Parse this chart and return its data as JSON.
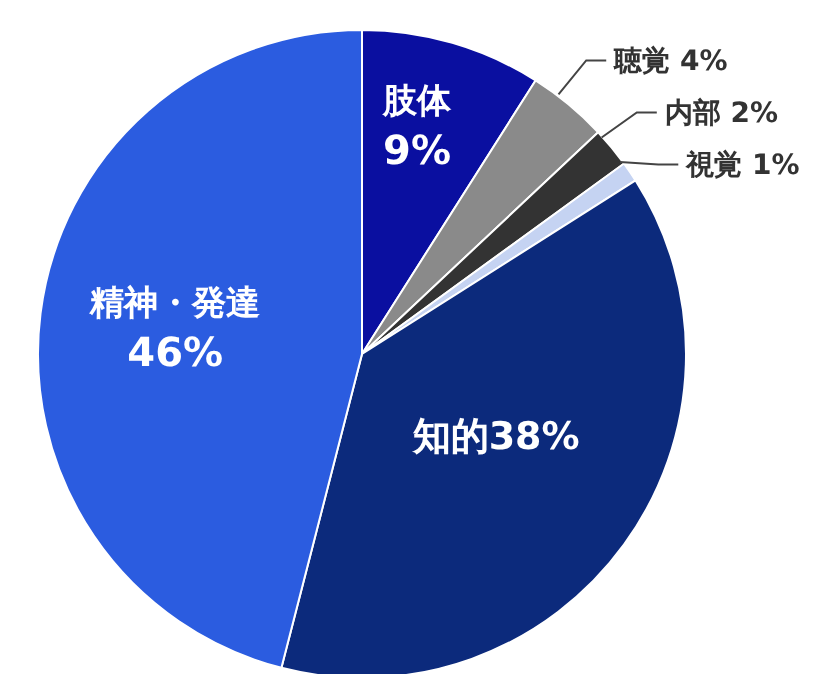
{
  "chart_data": {
    "type": "pie",
    "categories": [
      "肢体",
      "聴覚",
      "内部",
      "視覚",
      "知的",
      "精神・発達"
    ],
    "values": [
      9,
      4,
      2,
      1,
      38,
      46
    ],
    "colors": [
      "#0a0fa0",
      "#8a8a8a",
      "#333333",
      "#c5d3f2",
      "#0c2a7c",
      "#2b5ce0"
    ],
    "value_labels": [
      "9%",
      "4%",
      "2%",
      "1%",
      "38%",
      "46%"
    ]
  }
}
